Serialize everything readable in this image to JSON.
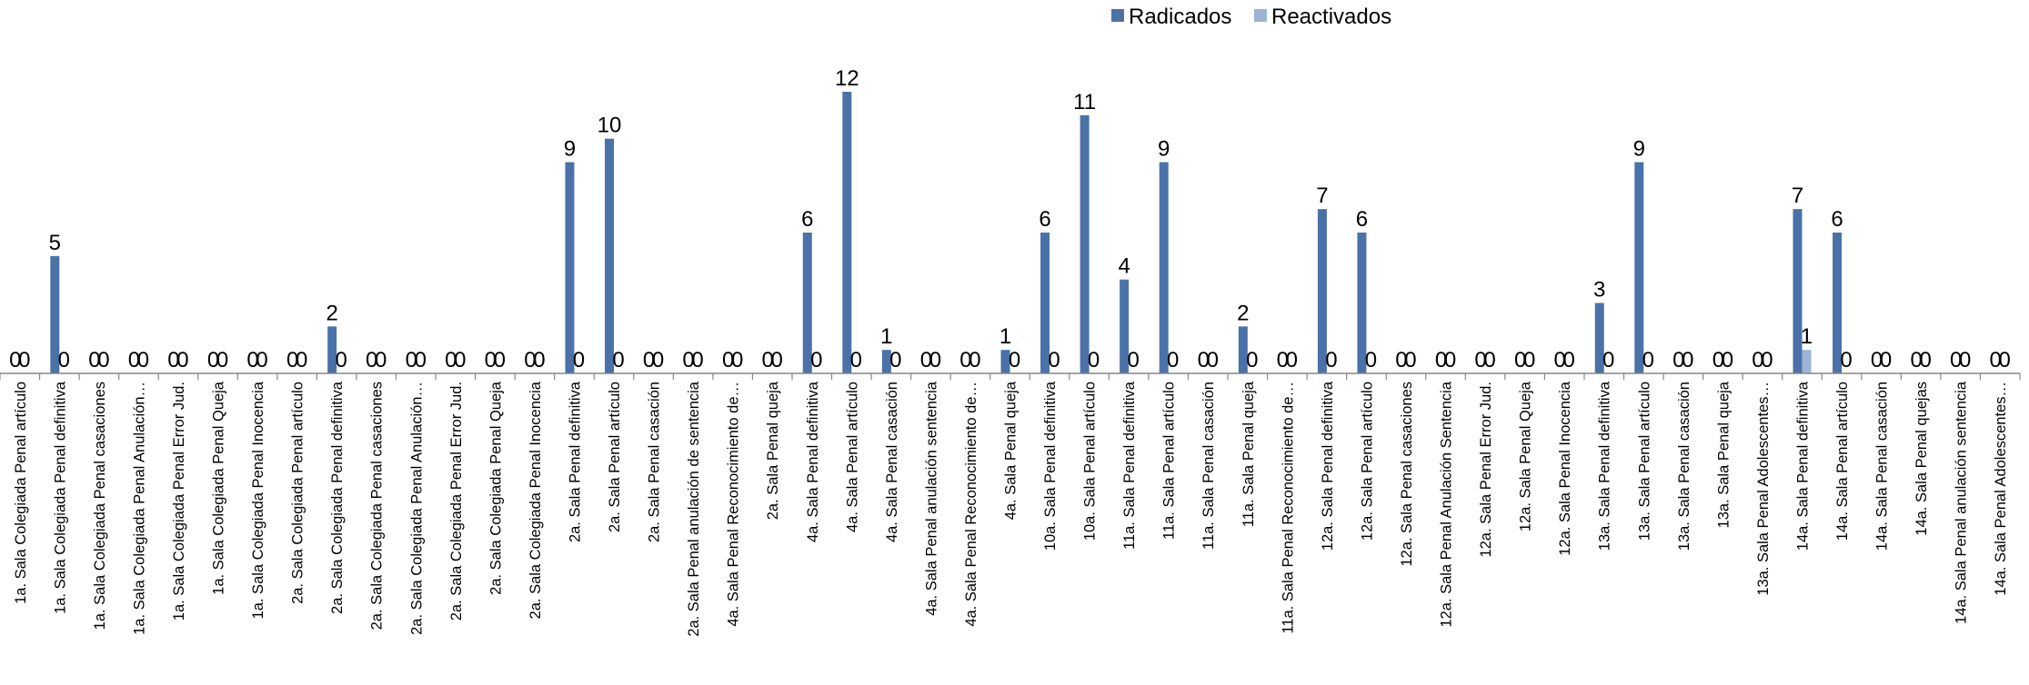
{
  "chart_data": {
    "type": "bar",
    "title": "",
    "xlabel": "",
    "ylabel": "",
    "ylim": [
      0,
      12
    ],
    "grid": false,
    "legend_position": "top-right",
    "colors": {
      "Radicados": "#4a72a8",
      "Reactivados": "#9db4d6"
    },
    "categories": [
      "1a. Sala Colegiada Penal artículo",
      "1a. Sala Colegiada Penal definitiva",
      "1a. Sala Colegiada Penal casaciones",
      "1a. Sala Colegiada Penal Anulación…",
      "1a. Sala Colegiada Penal Error Jud.",
      "1a. Sala Colegiada Penal Queja",
      "1a. Sala Colegiada Penal Inocencia",
      "2a. Sala Colegiada Penal artículo",
      "2a. Sala Colegiada Penal definitiva",
      "2a. Sala Colegiada Penal casaciones",
      "2a. Sala Colegiada Penal Anulación…",
      "2a. Sala Colegiada Penal Error Jud.",
      "2a. Sala Colegiada Penal Queja",
      "2a. Sala Colegiada Penal Inocencia",
      "2a. Sala Penal definitiva",
      "2a. Sala Penal artículo",
      "2a. Sala Penal casación",
      "2a. Sala Penal anulación de sentencia",
      "4a. Sala Penal Reconocimiento de…",
      "2a. Sala Penal queja",
      "4a. Sala Penal definitiva",
      "4a. Sala Penal artículo",
      "4a. Sala Penal casación",
      "4a. Sala Penal anulación sentencia",
      "4a. Sala Penal Reconocimiento de…",
      "4a. Sala Penal queja",
      "10a. Sala Penal definitiva",
      "10a. Sala Penal artículo",
      "11a. Sala Penal definitiva",
      "11a. Sala Penal artículo",
      "11a. Sala Penal casación",
      "11a. Sala Penal queja",
      "11a. Sala Penal Reconocimiento de…",
      "12a. Sala Penal definitiva",
      "12a. Sala Penal artículo",
      "12a. Sala Penal casaciones",
      "12a. Sala Penal Anulación Sentencia",
      "12a. Sala Penal Error Jud.",
      "12a. Sala Penal Queja",
      "12a. Sala Penal Inocencia",
      "13a. Sala Penal definitiva",
      "13a. Sala Penal artículo",
      "13a. Sala Penal casación",
      "13a. Sala Penal queja",
      "13a. Sala Penal Adolescentes…",
      "14a. Sala Penal definitiva",
      "14a. Sala Penal artículo",
      "14a. Sala Penal casación",
      "14a. Sala Penal quejas",
      "14a. Sala Penal anulación sentencia",
      "14a. Sala Penal Adolescentes…"
    ],
    "series": [
      {
        "name": "Radicados",
        "values": [
          0,
          5,
          0,
          0,
          0,
          0,
          0,
          0,
          2,
          0,
          0,
          0,
          0,
          0,
          9,
          10,
          0,
          0,
          0,
          0,
          6,
          12,
          1,
          0,
          0,
          1,
          6,
          11,
          4,
          9,
          0,
          2,
          0,
          7,
          6,
          0,
          0,
          0,
          0,
          0,
          3,
          9,
          0,
          0,
          0,
          7,
          6,
          0,
          0,
          0,
          0
        ]
      },
      {
        "name": "Reactivados",
        "values": [
          0,
          0,
          0,
          0,
          0,
          0,
          0,
          0,
          0,
          0,
          0,
          0,
          0,
          0,
          0,
          0,
          0,
          0,
          0,
          0,
          0,
          0,
          0,
          0,
          0,
          0,
          0,
          0,
          0,
          0,
          0,
          0,
          0,
          0,
          0,
          0,
          0,
          0,
          0,
          0,
          0,
          0,
          0,
          0,
          0,
          1,
          0,
          0,
          0,
          0,
          0
        ]
      }
    ]
  }
}
